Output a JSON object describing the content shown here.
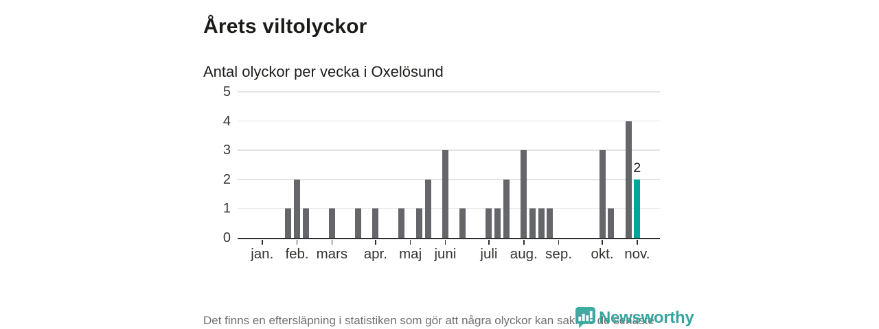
{
  "header": {
    "title": "Årets viltolyckor",
    "subtitle": "Antal olyckor per vecka i Oxelösund"
  },
  "chart_data": {
    "type": "bar",
    "title": "Årets viltolyckor",
    "subtitle": "Antal olyckor per vecka i Oxelösund",
    "x_unit": "vecka",
    "n_slots": 48,
    "values": [
      0,
      0,
      0,
      0,
      0,
      1,
      2,
      1,
      0,
      0,
      1,
      0,
      0,
      1,
      0,
      1,
      0,
      0,
      1,
      0,
      1,
      2,
      0,
      3,
      0,
      1,
      0,
      0,
      1,
      1,
      2,
      0,
      3,
      1,
      1,
      1,
      0,
      0,
      0,
      0,
      0,
      3,
      1,
      0,
      4,
      2,
      0,
      0
    ],
    "highlight_week": 46,
    "highlight_value_label": "2",
    "yticks": [
      "0",
      "1",
      "2",
      "3",
      "4",
      "5"
    ],
    "ylim": [
      0,
      5
    ],
    "grid": true,
    "month_ticks": [
      {
        "label": "jan.",
        "week": 3
      },
      {
        "label": "feb.",
        "week": 7
      },
      {
        "label": "mars",
        "week": 11
      },
      {
        "label": "apr.",
        "week": 16
      },
      {
        "label": "maj",
        "week": 20
      },
      {
        "label": "juni",
        "week": 24
      },
      {
        "label": "juli",
        "week": 29
      },
      {
        "label": "aug.",
        "week": 33
      },
      {
        "label": "sep.",
        "week": 37
      },
      {
        "label": "okt.",
        "week": 42
      },
      {
        "label": "nov.",
        "week": 46
      }
    ],
    "colors": {
      "bar": "#64666a",
      "highlight": "#00a59c",
      "grid": "#e3e3e3",
      "axis": "#2d2d2d"
    }
  },
  "footer": {
    "note": "Det finns en eftersläpning i statistiken som gör att några olyckor kan saknas de senaste veckorna."
  },
  "logo": {
    "text": "Newsworthy",
    "color": "#2da19a"
  }
}
